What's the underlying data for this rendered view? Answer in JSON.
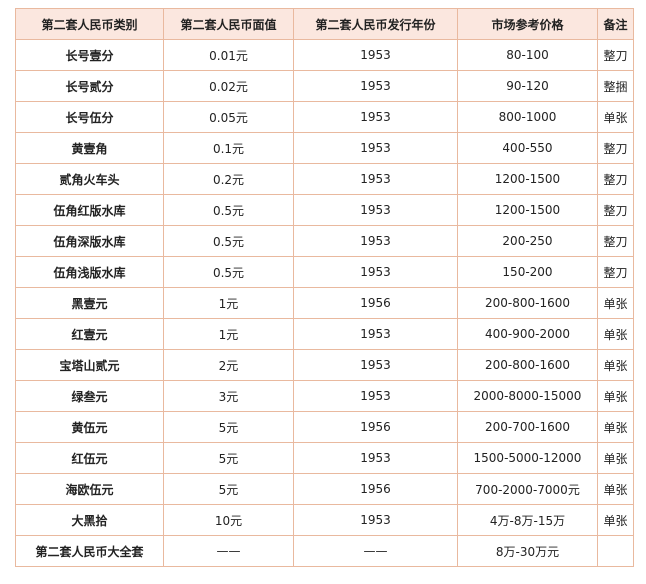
{
  "table": {
    "headers": [
      "第二套人民币类别",
      "第二套人民币面值",
      "第二套人民币发行年份",
      "市场参考价格",
      "备注"
    ],
    "rows": [
      [
        "长号壹分",
        "0.01元",
        "1953",
        "80-100",
        "整刀"
      ],
      [
        "长号贰分",
        "0.02元",
        "1953",
        "90-120",
        "整捆"
      ],
      [
        "长号伍分",
        "0.05元",
        "1953",
        "800-1000",
        "单张"
      ],
      [
        "黄壹角",
        "0.1元",
        "1953",
        "400-550",
        "整刀"
      ],
      [
        "贰角火车头",
        "0.2元",
        "1953",
        "1200-1500",
        "整刀"
      ],
      [
        "伍角红版水库",
        "0.5元",
        "1953",
        "1200-1500",
        "整刀"
      ],
      [
        "伍角深版水库",
        "0.5元",
        "1953",
        "200-250",
        "整刀"
      ],
      [
        "伍角浅版水库",
        "0.5元",
        "1953",
        "150-200",
        "整刀"
      ],
      [
        "黑壹元",
        "1元",
        "1956",
        "200-800-1600",
        "单张"
      ],
      [
        "红壹元",
        "1元",
        "1953",
        "400-900-2000",
        "单张"
      ],
      [
        "宝塔山贰元",
        "2元",
        "1953",
        "200-800-1600",
        "单张"
      ],
      [
        "绿叁元",
        "3元",
        "1953",
        "2000-8000-15000",
        "单张"
      ],
      [
        "黄伍元",
        "5元",
        "1956",
        "200-700-1600",
        "单张"
      ],
      [
        "红伍元",
        "5元",
        "1953",
        "1500-5000-12000",
        "单张"
      ],
      [
        "海欧伍元",
        "5元",
        "1956",
        "700-2000-7000元",
        "单张"
      ],
      [
        "大黑拾",
        "10元",
        "1953",
        "4万-8万-15万",
        "单张"
      ],
      [
        "第二套人民币大全套",
        "——",
        "——",
        "8万-30万元",
        ""
      ]
    ]
  }
}
